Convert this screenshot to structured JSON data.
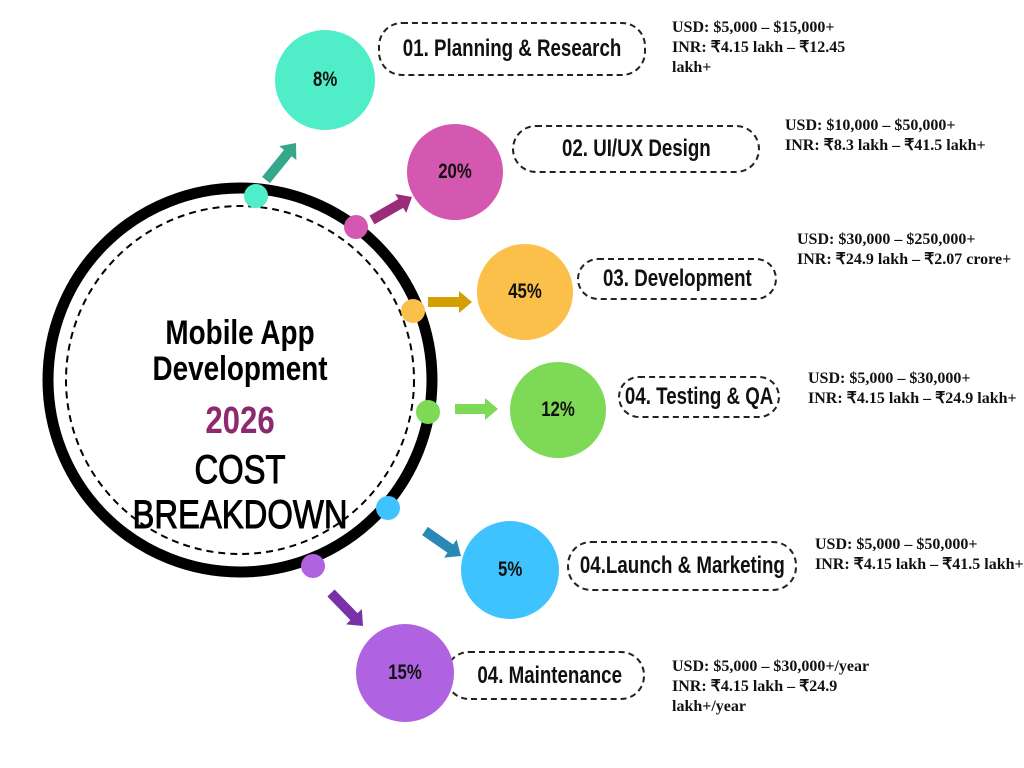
{
  "title": {
    "line1": "Mobile App",
    "line2": "Development",
    "year": "2026",
    "subtitle": "COST BREAKDOWN"
  },
  "colors": {
    "year": "#8b2a6e",
    "ring": "#000000"
  },
  "items": [
    {
      "label": "01. Planning & Research",
      "percent": "8%",
      "usd": "USD: $5,000 – $15,000+",
      "inr": "INR: ₹4.15 lakh – ₹12.45 lakh+",
      "color": "#4feec8",
      "arrow_color": "#35a78a"
    },
    {
      "label": "02. UI/UX Design",
      "percent": "20%",
      "usd": "USD: $10,000 – $50,000+",
      "inr": "INR: ₹8.3 lakh – ₹41.5 lakh+",
      "color": "#d457b0",
      "arrow_color": "#9a2d7a"
    },
    {
      "label": "03. Development",
      "percent": "45%",
      "usd": "USD: $30,000 – $250,000+",
      "inr": "INR: ₹24.9 lakh – ₹2.07 crore+",
      "color": "#fbc04a",
      "arrow_color": "#d4a000"
    },
    {
      "label": "04. Testing & QA",
      "percent": "12%",
      "usd": "USD: $5,000 – $30,000+",
      "inr": "INR: ₹4.15 lakh – ₹24.9 lakh+",
      "color": "#7ed957",
      "arrow_color": "#7ed957"
    },
    {
      "label": "04.Launch & Marketing",
      "percent": "5%",
      "usd": "USD: $5,000 – $50,000+",
      "inr": "INR: ₹4.15 lakh – ₹41.5 lakh+",
      "color": "#3fc3ff",
      "arrow_color": "#2a88b5"
    },
    {
      "label": "04. Maintenance",
      "percent": "15%",
      "usd": "USD: $5,000 – $30,000+/year",
      "inr": "INR: ₹4.15 lakh – ₹24.9 lakh+/year",
      "color": "#b063e0",
      "arrow_color": "#7a30a8"
    }
  ]
}
